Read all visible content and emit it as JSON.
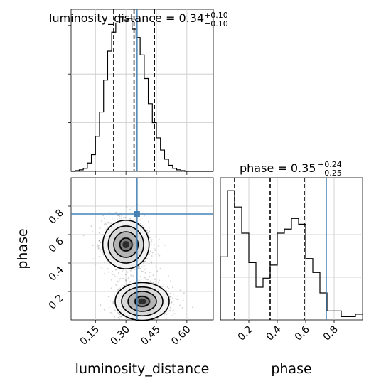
{
  "chart_data": [
    {
      "type": "histogram",
      "panel": "marginal-top",
      "title_main": "luminosity_distance = 0.34",
      "title_sup": "+0.10",
      "title_sub": "−0.10",
      "xlim": [
        0.03,
        0.73
      ],
      "bins": [
        0.03,
        0.05,
        0.07,
        0.09,
        0.11,
        0.13,
        0.15,
        0.17,
        0.19,
        0.21,
        0.23,
        0.25,
        0.27,
        0.29,
        0.31,
        0.33,
        0.35,
        0.37,
        0.39,
        0.41,
        0.43,
        0.45,
        0.47,
        0.49,
        0.51,
        0.53,
        0.55,
        0.57,
        0.59,
        0.61,
        0.63,
        0.65,
        0.67,
        0.69,
        0.71,
        0.73
      ],
      "counts": [
        0,
        1,
        2,
        4,
        11,
        22,
        46,
        78,
        120,
        158,
        183,
        195,
        203,
        199,
        201,
        187,
        176,
        153,
        122,
        89,
        64,
        44,
        28,
        16,
        8,
        4,
        2,
        1,
        0,
        0,
        0,
        0,
        0,
        0,
        0
      ],
      "quantiles": [
        0.24,
        0.34,
        0.44
      ],
      "truth": 0.355
    },
    {
      "type": "scatter-density",
      "panel": "joint",
      "xlabel": "luminosity_distance",
      "ylabel": "phase",
      "xlim": [
        0.03,
        0.73
      ],
      "ylim": [
        0.0,
        1.0
      ],
      "xticks": [
        "0.15",
        "0.30",
        "0.45",
        "0.60"
      ],
      "xtick_values": [
        0.15,
        0.3,
        0.45,
        0.6
      ],
      "yticks": [
        "0.2",
        "0.4",
        "0.6",
        "0.8"
      ],
      "ytick_values": [
        0.2,
        0.4,
        0.6,
        0.8
      ],
      "modes": [
        {
          "center": [
            0.3,
            0.53
          ],
          "spread": [
            0.06,
            0.09
          ]
        },
        {
          "center": [
            0.38,
            0.13
          ],
          "spread": [
            0.07,
            0.07
          ]
        }
      ],
      "truth": [
        0.355,
        0.745
      ]
    },
    {
      "type": "histogram",
      "panel": "marginal-right",
      "title_main": "phase = 0.35",
      "title_sup": "+0.24",
      "title_sub": "−0.25",
      "xlabel": "phase",
      "xlim": [
        0.0,
        1.0
      ],
      "xticks": [
        "0.2",
        "0.4",
        "0.6",
        "0.8"
      ],
      "xtick_values": [
        0.2,
        0.4,
        0.6,
        0.8
      ],
      "bins": [
        0.0,
        0.05,
        0.1,
        0.15,
        0.2,
        0.25,
        0.3,
        0.35,
        0.4,
        0.45,
        0.5,
        0.55,
        0.6,
        0.65,
        0.7,
        0.75,
        0.8,
        0.85,
        0.9,
        0.95,
        1.0
      ],
      "counts": [
        77,
        158,
        138,
        106,
        70,
        40,
        51,
        67,
        106,
        111,
        124,
        117,
        75,
        58,
        33,
        11,
        11,
        4,
        4,
        7
      ],
      "quantiles": [
        0.1,
        0.35,
        0.59
      ],
      "truth": 0.745
    }
  ]
}
